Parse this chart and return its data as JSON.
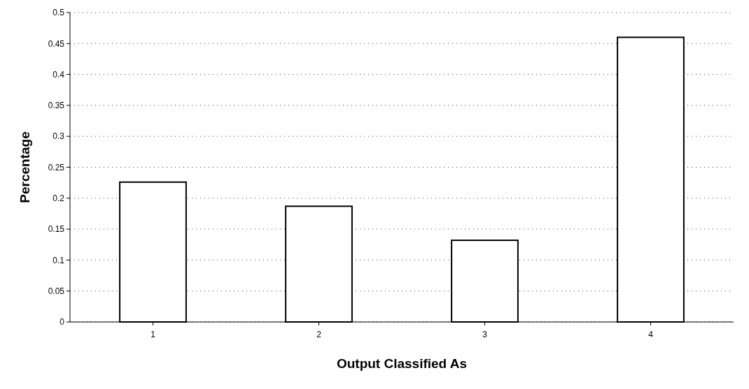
{
  "chart_data": {
    "type": "bar",
    "xlabel": "Output Classified As",
    "ylabel": "Percentage",
    "categories": [
      "1",
      "2",
      "3",
      "4"
    ],
    "values": [
      0.226,
      0.187,
      0.132,
      0.46
    ],
    "color": "#ffffff",
    "ylim": [
      0,
      0.5
    ],
    "yticks": [
      0,
      0.05,
      0.1,
      0.15,
      0.2,
      0.25,
      0.3,
      0.35,
      0.4,
      0.45,
      0.5
    ],
    "grid": "y"
  }
}
